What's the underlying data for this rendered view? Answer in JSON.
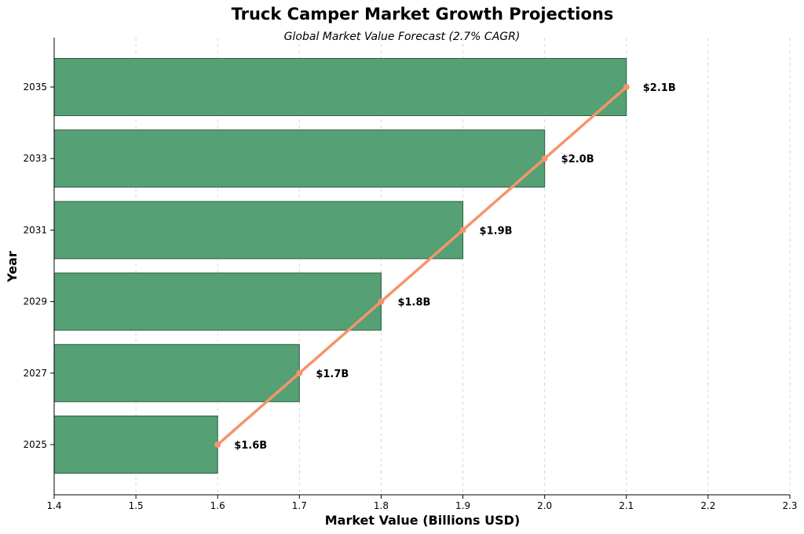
{
  "chart_data": {
    "type": "bar",
    "orientation": "horizontal",
    "title": "Truck Camper Market Growth Projections",
    "subtitle": "Global Market Value Forecast (2.7% CAGR)",
    "xlabel": "Market Value (Billions USD)",
    "ylabel": "Year",
    "categories": [
      "2025",
      "2027",
      "2029",
      "2031",
      "2033",
      "2035"
    ],
    "values": [
      1.6,
      1.7,
      1.8,
      1.9,
      2.0,
      2.1
    ],
    "data_labels": [
      "$1.6B",
      "$1.7B",
      "$1.8B",
      "$1.9B",
      "$2.0B",
      "$2.1B"
    ],
    "xlim": [
      1.4,
      2.3
    ],
    "xticks": [
      "1.4",
      "1.5",
      "1.6",
      "1.7",
      "1.8",
      "1.9",
      "2.0",
      "2.1",
      "2.2",
      "2.3"
    ],
    "grid": "vertical dashed",
    "overlay": "trend line with markers at bar ends",
    "colors": {
      "bar_fill": "#55a074",
      "bar_edge": "#2f5e44",
      "trend_line": "#f4956a"
    }
  }
}
